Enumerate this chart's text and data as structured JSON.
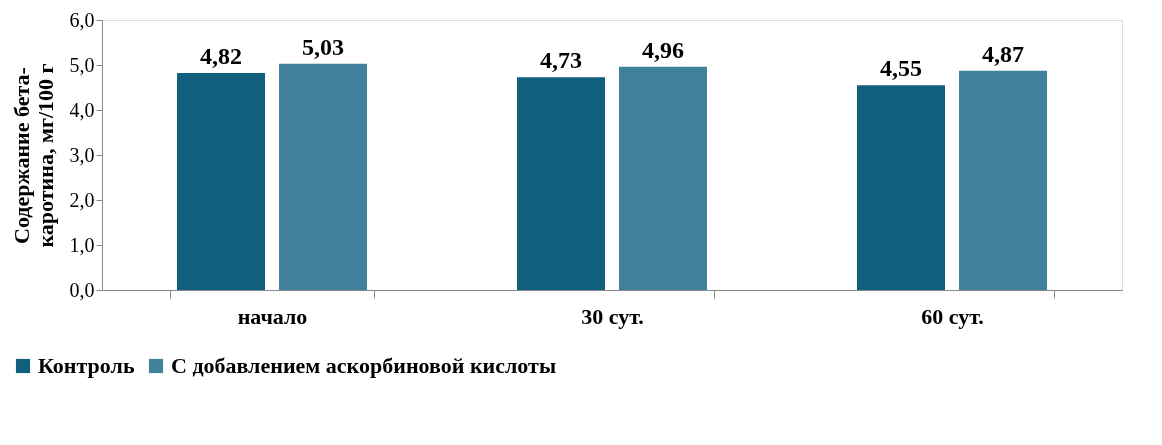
{
  "chart_data": {
    "type": "bar",
    "ylabel": "Содержание бета-\nкаротина, мг/100 г",
    "categories": [
      "начало",
      "30 сут.",
      "60 сут."
    ],
    "series": [
      {
        "name": "Контроль",
        "color": "#115e7d",
        "values": [
          4.82,
          4.73,
          4.55
        ],
        "value_labels": [
          "4,82",
          "4,73",
          "4,55"
        ]
      },
      {
        "name": "С добавлением аскорбиновой кислоты",
        "color": "#3f809a",
        "values": [
          5.03,
          4.96,
          4.87
        ],
        "value_labels": [
          "5,03",
          "4,96",
          "4,87"
        ]
      }
    ],
    "ylim": [
      0,
      6
    ],
    "yticks": [
      {
        "value": 0,
        "label": "0,0"
      },
      {
        "value": 1,
        "label": "1,0"
      },
      {
        "value": 2,
        "label": "2,0"
      },
      {
        "value": 3,
        "label": "3,0"
      },
      {
        "value": 4,
        "label": "4,0"
      },
      {
        "value": 5,
        "label": "5,0"
      },
      {
        "value": 6,
        "label": "6,0"
      }
    ],
    "grid": false,
    "legend": "bottom left"
  }
}
